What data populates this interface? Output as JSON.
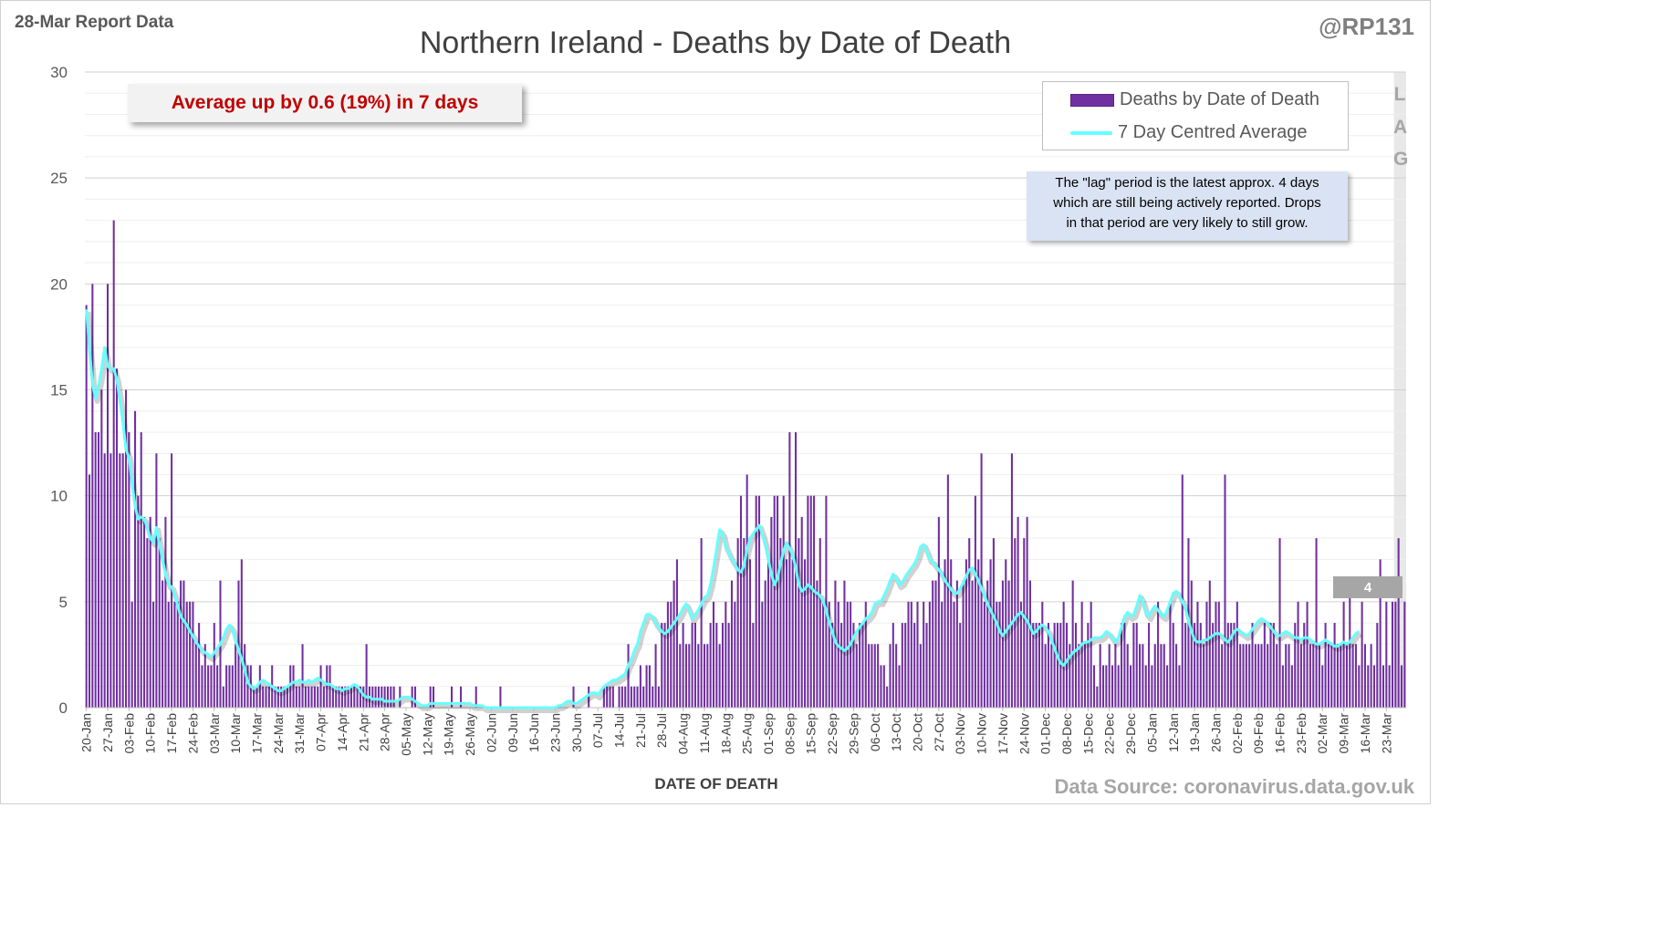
{
  "header": {
    "report_label": "28-Mar Report Data",
    "handle": "@RP131",
    "title": "Northern Ireland - Deaths by Date of Death"
  },
  "callout": {
    "text": "Average up by 0.6 (19%) in 7 days"
  },
  "legend": {
    "bars_label": "Deaths by Date of Death",
    "line_label": "7 Day Centred Average"
  },
  "lag_note": {
    "lines": [
      "The \"lag\" period is the latest approx. 4 days",
      "which are still being actively reported. Drops",
      "in that period are very likely to still grow."
    ],
    "lag_letters": [
      "L",
      "A",
      "G"
    ]
  },
  "x_axis_label": "DATE OF DEATH",
  "source": "Data Source: coronavirus.data.gov.uk",
  "colors": {
    "bars": "#7030a0",
    "average_line": "#66ffff",
    "callout_text": "#c00000",
    "lag_shade": "#e8e8e8",
    "gridline": "#d9d9d9"
  },
  "chart_data": {
    "type": "bar",
    "title": "Northern Ireland - Deaths by Date of Death",
    "xlabel": "DATE OF DEATH",
    "ylabel": "",
    "ylim": [
      0,
      30
    ],
    "yticks": [
      0,
      5,
      10,
      15,
      20,
      25,
      30
    ],
    "grid": true,
    "legend_position": "top-right",
    "x_start": "20-Jan",
    "x_end": "27-Mar",
    "xtick_labels": [
      "20-Jan",
      "27-Jan",
      "03-Feb",
      "10-Feb",
      "17-Feb",
      "24-Feb",
      "03-Mar",
      "10-Mar",
      "17-Mar",
      "24-Mar",
      "31-Mar",
      "07-Apr",
      "14-Apr",
      "21-Apr",
      "28-Apr",
      "05-May",
      "12-May",
      "19-May",
      "26-May",
      "02-Jun",
      "09-Jun",
      "16-Jun",
      "23-Jun",
      "30-Jun",
      "07-Jul",
      "14-Jul",
      "21-Jul",
      "28-Jul",
      "04-Aug",
      "11-Aug",
      "18-Aug",
      "25-Aug",
      "01-Sep",
      "08-Sep",
      "15-Sep",
      "22-Sep",
      "29-Sep",
      "06-Oct",
      "13-Oct",
      "20-Oct",
      "27-Oct",
      "03-Nov",
      "10-Nov",
      "17-Nov",
      "24-Nov",
      "01-Dec",
      "08-Dec",
      "15-Dec",
      "22-Dec",
      "29-Dec",
      "05-Jan",
      "12-Jan",
      "19-Jan",
      "26-Jan",
      "02-Feb",
      "09-Feb",
      "16-Feb",
      "23-Feb",
      "02-Mar",
      "09-Mar",
      "16-Mar",
      "23-Mar"
    ],
    "lag_days": 4,
    "last_average_label": "4",
    "series": [
      {
        "name": "Deaths by Date of Death",
        "type": "bar",
        "values": [
          19,
          11,
          20,
          13,
          13,
          15,
          12,
          20,
          12,
          23,
          16,
          12,
          12,
          15,
          13,
          5,
          14,
          10,
          13,
          9,
          8,
          9,
          5,
          12,
          8,
          6,
          9,
          5,
          12,
          5,
          5,
          6,
          6,
          5,
          5,
          5,
          3,
          4,
          2,
          3,
          2,
          2,
          4,
          2,
          6,
          1,
          2,
          2,
          2,
          3,
          6,
          7,
          3,
          2,
          2,
          1,
          1,
          2,
          1,
          1,
          1,
          2,
          1,
          1,
          1,
          1,
          1,
          2,
          2,
          1,
          1,
          3,
          1,
          1,
          1,
          1,
          1,
          2,
          1,
          2,
          2,
          1,
          1,
          1,
          1,
          1,
          1,
          1,
          1,
          1,
          1,
          1,
          3,
          1,
          1,
          1,
          1,
          1,
          1,
          1,
          1,
          1,
          0,
          1,
          0,
          0,
          0,
          1,
          1,
          0,
          0,
          0,
          0,
          1,
          1,
          0,
          0,
          0,
          0,
          0,
          1,
          0,
          0,
          1,
          0,
          0,
          0,
          0,
          1,
          0,
          0,
          0,
          0,
          0,
          0,
          0,
          1,
          0,
          0,
          0,
          0,
          0,
          0,
          0,
          0,
          0,
          0,
          0,
          0,
          0,
          0,
          0,
          0,
          0,
          0,
          0,
          0,
          0,
          0,
          0,
          1,
          0,
          0,
          0,
          0,
          1,
          0,
          0,
          0,
          0,
          1,
          1,
          1,
          1,
          0,
          1,
          1,
          1,
          3,
          1,
          1,
          1,
          2,
          1,
          2,
          2,
          1,
          3,
          1,
          4,
          4,
          5,
          5,
          6,
          7,
          3,
          4,
          3,
          3,
          4,
          4,
          3,
          8,
          3,
          3,
          4,
          5,
          4,
          3,
          4,
          5,
          4,
          6,
          5,
          8,
          10,
          8,
          11,
          7,
          4,
          10,
          10,
          5,
          6,
          7,
          9,
          10,
          10,
          8,
          10,
          7,
          13,
          7,
          13,
          8,
          9,
          7,
          10,
          10,
          10,
          6,
          8,
          5,
          10,
          5,
          4,
          6,
          5,
          4,
          6,
          5,
          5,
          4,
          3,
          4,
          4,
          5,
          3,
          3,
          3,
          3,
          2,
          2,
          1,
          3,
          4,
          3,
          2,
          4,
          4,
          5,
          5,
          4,
          5,
          3,
          5,
          4,
          5,
          6,
          6,
          9,
          5,
          7,
          11,
          7,
          5,
          6,
          4,
          6,
          7,
          8,
          6,
          10,
          7,
          12,
          5,
          6,
          7,
          8,
          5,
          5,
          6,
          7,
          6,
          12,
          8,
          9,
          5,
          8,
          9,
          6,
          4,
          4,
          4,
          5,
          3,
          4,
          3,
          4,
          4,
          4,
          5,
          4,
          3,
          6,
          4,
          3,
          5,
          3,
          4,
          5,
          2,
          1,
          3,
          2,
          2,
          3,
          2,
          3,
          2,
          4,
          4,
          3,
          2,
          4,
          4,
          3,
          3,
          2,
          4,
          2,
          3,
          5,
          3,
          3,
          2,
          5,
          4,
          3,
          2,
          11,
          4,
          8,
          6,
          4,
          5,
          4,
          3,
          5,
          6,
          4,
          5,
          5,
          3,
          11,
          4,
          4,
          4,
          5,
          3,
          3,
          3,
          3,
          4,
          3,
          3,
          3,
          4,
          3,
          4,
          4,
          3,
          8,
          2,
          3,
          3,
          2,
          4,
          5,
          3,
          4,
          5,
          3,
          3,
          8,
          3,
          2,
          4,
          3,
          3,
          4,
          3,
          3,
          5,
          3,
          6,
          3,
          3,
          2,
          5,
          3,
          2,
          3,
          2,
          4,
          7,
          2,
          5,
          2,
          5,
          5,
          8,
          2,
          5
        ]
      },
      {
        "name": "7 Day Centred Average",
        "type": "line",
        "values": [
          18.8,
          17.0,
          15.3,
          14.6,
          15.2,
          16.0,
          17.0,
          16.1,
          16.0,
          16.0,
          15.5,
          14.5,
          13.5,
          12.2,
          11.8,
          10.6,
          9.5,
          8.9,
          9.0,
          8.9,
          8.5,
          8.0,
          7.8,
          8.5,
          7.7,
          7.0,
          6.3,
          5.8,
          5.7,
          5.3,
          4.8,
          4.3,
          4.1,
          3.9,
          3.6,
          3.4,
          3.1,
          2.9,
          2.7,
          2.6,
          2.5,
          2.4,
          2.6,
          2.8,
          3.0,
          3.3,
          3.7,
          3.9,
          3.7,
          3.2,
          2.7,
          2.3,
          1.8,
          1.2,
          1.0,
          0.9,
          1.0,
          1.2,
          1.3,
          1.2,
          1.1,
          1.0,
          0.9,
          0.8,
          0.8,
          0.9,
          1.0,
          1.1,
          1.2,
          1.2,
          1.3,
          1.2,
          1.2,
          1.3,
          1.2,
          1.3,
          1.4,
          1.3,
          1.2,
          1.1,
          1.1,
          1.0,
          0.9,
          0.9,
          0.8,
          0.9,
          0.9,
          1.0,
          1.1,
          1.0,
          0.8,
          0.6,
          0.5,
          0.5,
          0.4,
          0.4,
          0.4,
          0.4,
          0.3,
          0.3,
          0.3,
          0.3,
          0.3,
          0.4,
          0.5,
          0.5,
          0.5,
          0.4,
          0.3,
          0.2,
          0.1,
          0.1,
          0.1,
          0.2,
          0.2,
          0.2,
          0.2,
          0.2,
          0.2,
          0.2,
          0.2,
          0.2,
          0.2,
          0.2,
          0.2,
          0.2,
          0.2,
          0.1,
          0.1,
          0.1,
          0.1,
          0.0,
          0.0,
          0.0,
          0.0,
          0.0,
          0.0,
          0.0,
          0.0,
          0.0,
          0.0,
          0.0,
          0.0,
          0.0,
          0.0,
          0.0,
          0.0,
          0.0,
          0.0,
          0.0,
          0.0,
          0.0,
          0.0,
          0.0,
          0.0,
          0.1,
          0.1,
          0.2,
          0.3,
          0.3,
          0.2,
          0.2,
          0.3,
          0.4,
          0.5,
          0.6,
          0.7,
          0.7,
          0.6,
          0.8,
          1.0,
          1.1,
          1.2,
          1.3,
          1.3,
          1.4,
          1.5,
          1.6,
          2.0,
          2.3,
          2.7,
          3.0,
          3.6,
          4.0,
          4.4,
          4.4,
          4.3,
          4.0,
          3.8,
          3.6,
          3.5,
          3.6,
          3.8,
          4.0,
          4.2,
          4.4,
          4.7,
          4.9,
          4.6,
          4.2,
          4.4,
          4.6,
          4.9,
          5.2,
          5.3,
          5.8,
          6.6,
          7.5,
          8.4,
          8.2,
          7.6,
          7.3,
          7.0,
          6.8,
          6.5,
          6.4,
          6.7,
          7.5,
          8.0,
          8.2,
          8.4,
          8.6,
          8.2,
          7.7,
          7.0,
          6.3,
          5.8,
          6.1,
          6.8,
          7.4,
          7.8,
          7.5,
          7.2,
          6.6,
          5.8,
          5.5,
          5.6,
          5.8,
          5.7,
          5.5,
          5.4,
          5.3,
          5.0,
          4.6,
          4.0,
          3.6,
          3.1,
          2.9,
          2.8,
          2.7,
          2.8,
          3.0,
          3.3,
          3.6,
          3.8,
          4.0,
          4.2,
          4.3,
          4.5,
          4.9,
          5.0,
          5.0,
          5.3,
          5.6,
          6.0,
          6.3,
          6.1,
          5.8,
          5.9,
          6.2,
          6.4,
          6.6,
          6.8,
          7.1,
          7.6,
          7.7,
          7.4,
          7.0,
          6.9,
          6.7,
          6.5,
          6.3,
          6.0,
          5.8,
          5.6,
          5.4,
          5.4,
          5.6,
          5.9,
          6.2,
          6.5,
          6.6,
          6.3,
          6.0,
          5.6,
          5.3,
          4.9,
          4.6,
          4.3,
          4.0,
          3.6,
          3.4,
          3.6,
          3.8,
          4.0,
          4.2,
          4.4,
          4.5,
          4.3,
          4.1,
          3.8,
          3.5,
          3.6,
          3.8,
          3.9,
          3.8,
          3.6,
          3.2,
          2.8,
          2.4,
          2.1,
          2.0,
          2.2,
          2.4,
          2.6,
          2.7,
          2.8,
          3.0,
          3.1,
          3.1,
          3.2,
          3.3,
          3.3,
          3.3,
          3.4,
          3.6,
          3.5,
          3.3,
          3.1,
          3.3,
          3.8,
          4.3,
          4.5,
          4.3,
          4.4,
          4.8,
          5.3,
          5.0,
          4.5,
          4.3,
          4.6,
          4.8,
          4.6,
          4.4,
          4.3,
          4.6,
          5.0,
          5.4,
          5.5,
          5.3,
          5.0,
          4.7,
          4.1,
          3.6,
          3.2,
          3.1,
          3.1,
          3.2,
          3.2,
          3.3,
          3.4,
          3.5,
          3.5,
          3.4,
          3.2,
          3.1,
          3.3,
          3.6,
          3.7,
          3.6,
          3.5,
          3.4,
          3.5,
          3.7,
          3.9,
          4.1,
          4.2,
          4.1,
          4.0,
          3.8,
          3.6,
          3.4,
          3.4,
          3.5,
          3.6,
          3.5,
          3.4,
          3.3,
          3.3,
          3.2,
          3.3,
          3.3,
          3.2,
          3.1,
          3.0,
          3.0,
          3.1,
          3.2,
          3.1,
          3.0,
          2.9,
          2.9,
          3.0,
          3.1,
          3.0,
          3.1,
          3.3,
          3.5,
          3.6
        ]
      }
    ]
  }
}
